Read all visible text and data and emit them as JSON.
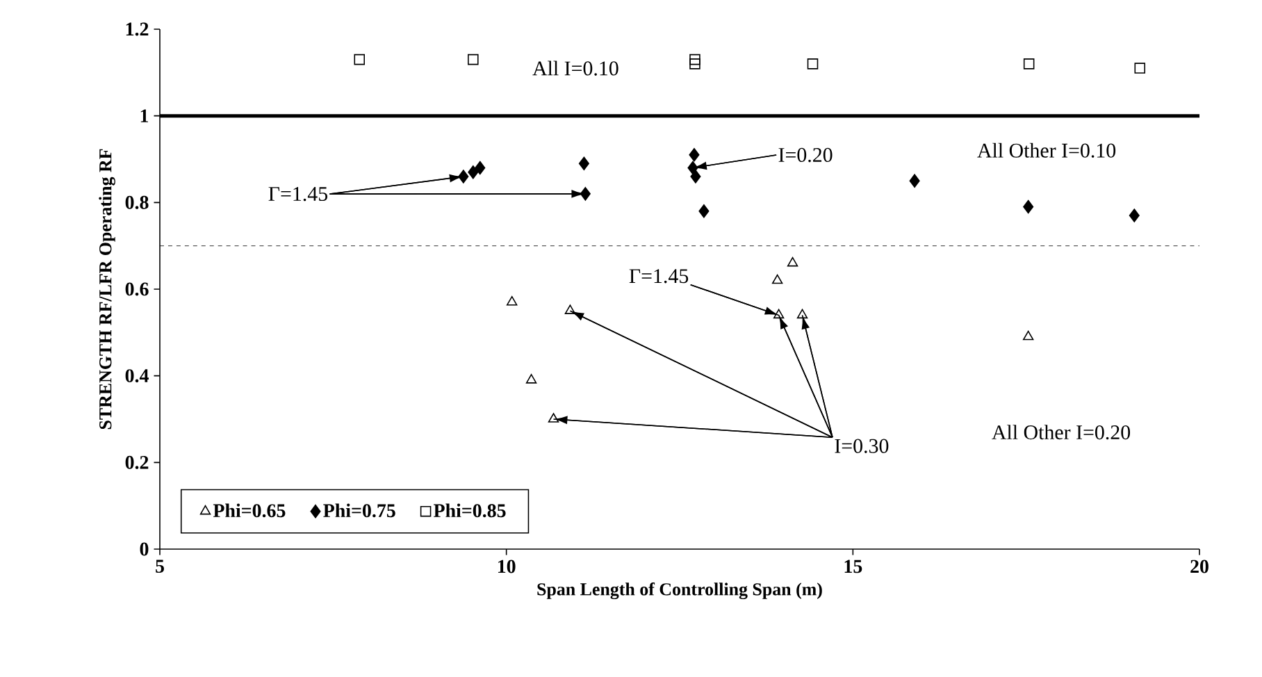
{
  "chart_data": {
    "type": "scatter",
    "xlabel": "Span Length of Controlling Span (m)",
    "ylabel": "STRENGTH RF/LFR Operating RF",
    "xlim": [
      5,
      20
    ],
    "xticks": [
      5,
      10,
      15,
      20
    ],
    "ylim": [
      0,
      1.2
    ],
    "yticks": [
      0,
      0.2,
      0.4,
      0.6,
      0.8,
      1,
      1.2
    ],
    "grid": false,
    "legend": "bottom left",
    "series": [
      {
        "name": "Phi=0.65",
        "color": "#000000",
        "marker": "triangle",
        "x": [
          10.08,
          10.36,
          10.68,
          10.92,
          13.91,
          13.93,
          14.13,
          14.27,
          17.53
        ],
        "values": [
          0.57,
          0.39,
          0.3,
          0.55,
          0.62,
          0.54,
          0.66,
          0.54,
          0.49
        ]
      },
      {
        "name": "Phi=0.75",
        "color": "#000000",
        "marker": "diamond",
        "x": [
          9.38,
          9.52,
          9.62,
          11.12,
          11.14,
          12.69,
          12.71,
          12.73,
          12.85,
          15.89,
          17.53,
          19.06
        ],
        "values": [
          0.86,
          0.87,
          0.88,
          0.89,
          0.82,
          0.88,
          0.91,
          0.86,
          0.78,
          0.85,
          0.79,
          0.77
        ]
      },
      {
        "name": "Phi=0.85",
        "color": "#000000",
        "marker": "square",
        "x": [
          7.88,
          9.52,
          12.72,
          12.72,
          14.42,
          17.54,
          19.14
        ],
        "values": [
          1.13,
          1.13,
          1.13,
          1.12,
          1.12,
          1.12,
          1.11
        ]
      }
    ],
    "ref_lines": [
      {
        "axis": "y",
        "value": 1,
        "line_style": "solid"
      },
      {
        "axis": "y",
        "value": 0.7,
        "line_style": "dashed"
      }
    ],
    "annotations": [
      "All I=0.10",
      "All Other I=0.10",
      {
        "text": "I=0.20",
        "x": 12.69,
        "y": 0.88
      },
      {
        "text": "Γ=1.45",
        "x": 9.38,
        "y": 0.86
      },
      {
        "text": "Γ=1.45",
        "x": 13.93,
        "y": 0.54
      },
      {
        "text": "I=0.30",
        "x": 10.68,
        "y": 0.3
      },
      "All Other I=0.20"
    ]
  }
}
